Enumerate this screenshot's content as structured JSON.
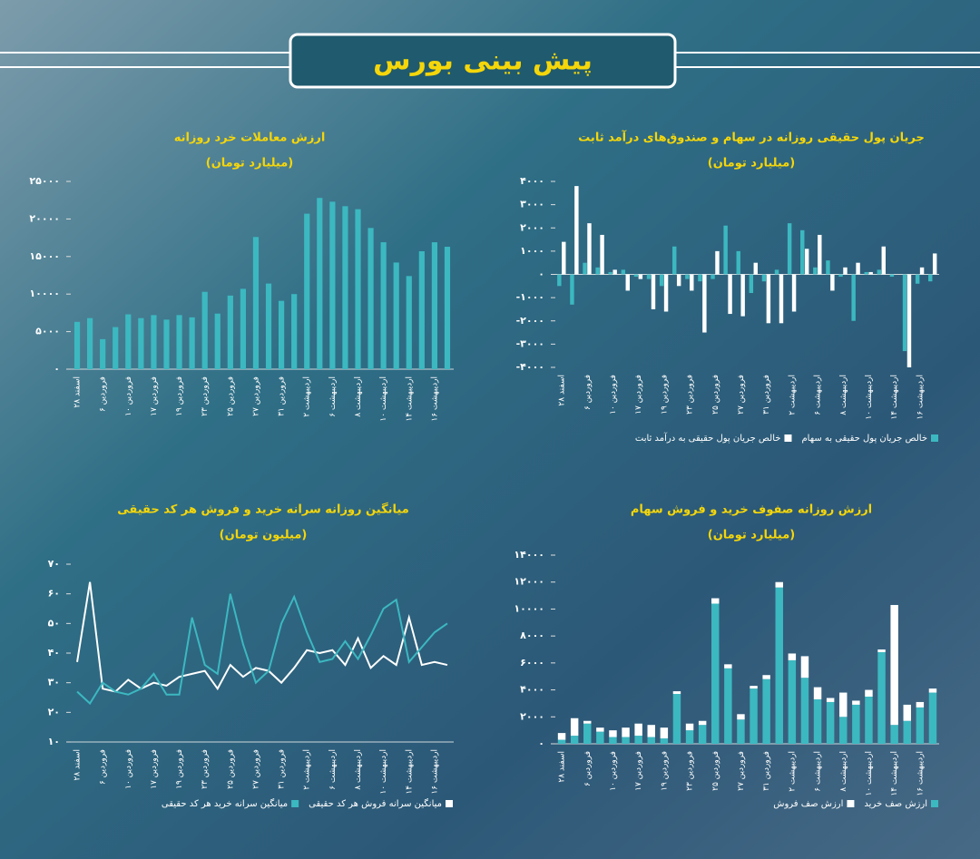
{
  "header": {
    "title": "پیش بینی بورس"
  },
  "chart_data": [
    {
      "type": "bar",
      "title": "ارزش معاملات خرد روزانه",
      "subtitle": "(میلیارد تومان)",
      "categories": [
        "اسفند ۲۸",
        null,
        "فروردین ۶",
        null,
        "فروردین ۱۰",
        null,
        "فروردین ۱۷",
        null,
        "فروردین ۱۹",
        null,
        "فروردین ۲۳",
        null,
        "فروردین ۲۵",
        null,
        "فروردین ۲۷",
        null,
        "فروردین ۳۱",
        null,
        "اردیبهشت ۲",
        null,
        "اردیبهشت ۶",
        null,
        "اردیبهشت ۸",
        null,
        "اردیبهشت ۱۰",
        null,
        "اردیبهشت ۱۴",
        null,
        "اردیبهشت ۱۶",
        null
      ],
      "values": [
        6300,
        6800,
        4000,
        5600,
        7300,
        6800,
        7200,
        6600,
        7200,
        6900,
        10300,
        7400,
        9800,
        10700,
        17600,
        11400,
        9100,
        10000,
        20700,
        22800,
        22300,
        21700,
        21300,
        18800,
        16900,
        14200,
        12400,
        15700,
        16900,
        16300
      ],
      "color": "#3cb8c0",
      "ylim": [
        0,
        25000
      ],
      "yticks": [
        {
          "value": 0,
          "label": "۰"
        },
        {
          "value": 5000,
          "label": "۵۰۰۰"
        },
        {
          "value": 10000,
          "label": "۱۰۰۰۰"
        },
        {
          "value": 15000,
          "label": "۱۵۰۰۰"
        },
        {
          "value": 20000,
          "label": "۲۰۰۰۰"
        },
        {
          "value": 25000,
          "label": "۲۵۰۰۰"
        }
      ]
    },
    {
      "type": "bar",
      "title": "جریان پول حقیقی روزانه در سهام و صندوق‌های درآمد ثابت",
      "subtitle": "(میلیارد تومان)",
      "categories": [
        "اسفند ۲۸",
        null,
        "فروردین ۶",
        null,
        "فروردین ۱۰",
        null,
        "فروردین ۱۷",
        null,
        "فروردین ۱۹",
        null,
        "فروردین ۲۳",
        null,
        "فروردین ۲۵",
        null,
        "فروردین ۲۷",
        null,
        "فروردین ۳۱",
        null,
        "اردیبهشت ۲",
        null,
        "اردیبهشت ۶",
        null,
        "اردیبهشت ۸",
        null,
        "اردیبهشت ۱۰",
        null,
        "اردیبهشت ۱۴",
        null,
        "اردیبهشت ۱۶",
        null
      ],
      "series": [
        {
          "name": "خالص جریان پول حقیقی به سهام",
          "color": "#3cb8c0",
          "values": [
            -500,
            -1300,
            500,
            300,
            100,
            200,
            -100,
            -200,
            -500,
            1200,
            -200,
            -300,
            -200,
            2100,
            1000,
            -800,
            -300,
            200,
            2200,
            1900,
            300,
            600,
            -100,
            -2000,
            100,
            200,
            -100,
            -3300,
            -400,
            -300
          ]
        },
        {
          "name": "خالص جریان پول حقیقی به درآمد ثابت",
          "color": "#ffffff",
          "values": [
            1400,
            3800,
            2200,
            1700,
            200,
            -700,
            -200,
            -1500,
            -1600,
            -500,
            -700,
            -2500,
            1000,
            -1700,
            -1800,
            500,
            -2100,
            -2100,
            -1600,
            1100,
            1700,
            -700,
            300,
            500,
            100,
            1200,
            0,
            -4000,
            300,
            900
          ]
        }
      ],
      "ylim": [
        -4000,
        4000
      ],
      "yticks": [
        {
          "value": -4000,
          "label": "-۴۰۰۰"
        },
        {
          "value": -3000,
          "label": "-۳۰۰۰"
        },
        {
          "value": -2000,
          "label": "-۲۰۰۰"
        },
        {
          "value": -1000,
          "label": "-۱۰۰۰"
        },
        {
          "value": 0,
          "label": "۰"
        },
        {
          "value": 1000,
          "label": "۱۰۰۰"
        },
        {
          "value": 2000,
          "label": "۲۰۰۰"
        },
        {
          "value": 3000,
          "label": "۳۰۰۰"
        },
        {
          "value": 4000,
          "label": "۴۰۰۰"
        }
      ]
    },
    {
      "type": "line",
      "title": "میانگین روزانه سرانه خرید و فروش هر کد حقیقی",
      "subtitle": "(میلیون تومان)",
      "categories": [
        "اسفند ۲۸",
        null,
        "فروردین ۶",
        null,
        "فروردین ۱۰",
        null,
        "فروردین ۱۷",
        null,
        "فروردین ۱۹",
        null,
        "فروردین ۲۳",
        null,
        "فروردین ۲۵",
        null,
        "فروردین ۲۷",
        null,
        "فروردین ۳۱",
        null,
        "اردیبهشت ۲",
        null,
        "اردیبهشت ۶",
        null,
        "اردیبهشت ۸",
        null,
        "اردیبهشت ۱۰",
        null,
        "اردیبهشت ۱۴",
        null,
        "اردیبهشت ۱۶",
        null
      ],
      "series": [
        {
          "name": "میانگین سرانه فروش هر کد حقیقی",
          "color": "#ffffff",
          "values": [
            37,
            64,
            28,
            27,
            31,
            28,
            30,
            29,
            32,
            33,
            34,
            28,
            36,
            32,
            35,
            34,
            30,
            35,
            41,
            40,
            41,
            36,
            45,
            35,
            39,
            36,
            52,
            36,
            37,
            36
          ]
        },
        {
          "name": "میانگین سرانه خرید هر کد حقیقی",
          "color": "#3cb8c0",
          "values": [
            27,
            23,
            30,
            27,
            26,
            28,
            33,
            26,
            26,
            52,
            36,
            33,
            60,
            43,
            30,
            34,
            50,
            59,
            47,
            37,
            38,
            44,
            38,
            46,
            55,
            58,
            37,
            42,
            47,
            50
          ]
        }
      ],
      "ylim": [
        10,
        70
      ],
      "yticks": [
        {
          "value": 10,
          "label": "۱۰"
        },
        {
          "value": 20,
          "label": "۲۰"
        },
        {
          "value": 30,
          "label": "۳۰"
        },
        {
          "value": 40,
          "label": "۴۰"
        },
        {
          "value": 50,
          "label": "۵۰"
        },
        {
          "value": 60,
          "label": "۶۰"
        },
        {
          "value": 70,
          "label": "۷۰"
        }
      ]
    },
    {
      "type": "stacked",
      "title": "ارزش روزانه صفوف خرید و فروش سهام",
      "subtitle": "(میلیارد تومان)",
      "categories": [
        "اسفند ۲۸",
        null,
        "فروردین ۶",
        null,
        "فروردین ۱۰",
        null,
        "فروردین ۱۷",
        null,
        "فروردین ۱۹",
        null,
        "فروردین ۲۳",
        null,
        "فروردین ۲۵",
        null,
        "فروردین ۲۷",
        null,
        "فروردین ۳۱",
        null,
        "اردیبهشت ۲",
        null,
        "اردیبهشت ۶",
        null,
        "اردیبهشت ۸",
        null,
        "اردیبهشت ۱۰",
        null,
        "اردیبهشت ۱۴",
        null,
        "اردیبهشت ۱۶",
        null
      ],
      "series": [
        {
          "name": "ارزش صف خرید",
          "color": "#3cb8c0",
          "values": [
            300,
            600,
            1500,
            900,
            500,
            500,
            600,
            500,
            400,
            3700,
            1000,
            1400,
            10400,
            5600,
            1800,
            4100,
            4800,
            11600,
            6200,
            4900,
            3300,
            3100,
            2000,
            2900,
            3500,
            6800,
            1400,
            1700,
            2700,
            3800
          ]
        },
        {
          "name": "ارزش صف فروش",
          "color": "#ffffff",
          "values": [
            500,
            1300,
            200,
            300,
            500,
            700,
            900,
            900,
            800,
            200,
            500,
            300,
            400,
            300,
            400,
            200,
            300,
            400,
            500,
            1600,
            900,
            300,
            1800,
            300,
            500,
            200,
            8900,
            1200,
            400,
            300
          ]
        }
      ],
      "ylim": [
        0,
        14000
      ],
      "yticks": [
        {
          "value": 0,
          "label": "۰"
        },
        {
          "value": 2000,
          "label": "۲۰۰۰"
        },
        {
          "value": 4000,
          "label": "۴۰۰۰"
        },
        {
          "value": 6000,
          "label": "۶۰۰۰"
        },
        {
          "value": 8000,
          "label": "۸۰۰۰"
        },
        {
          "value": 10000,
          "label": "۱۰۰۰۰"
        },
        {
          "value": 12000,
          "label": "۱۲۰۰۰"
        },
        {
          "value": 14000,
          "label": "۱۴۰۰۰"
        }
      ]
    }
  ]
}
